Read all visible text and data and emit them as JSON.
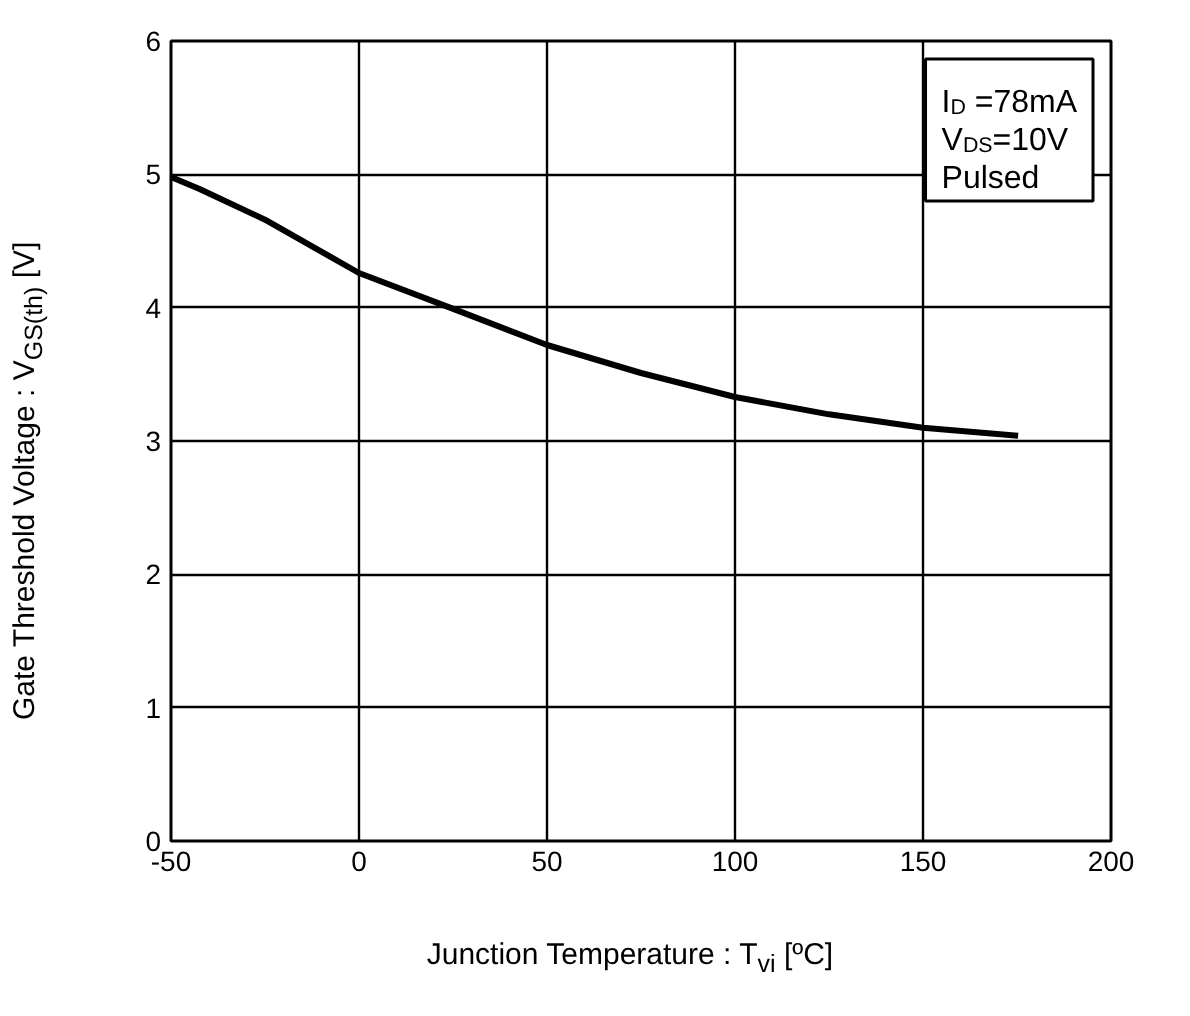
{
  "chart_data": {
    "type": "line",
    "xlabel": "Junction Temperature : T$_{vi}$ [ºC]",
    "ylabel": "Gate Threshold Voltage : V$_{GS(th)}$ [V]",
    "x": [
      -50,
      -42.4,
      -25,
      0,
      24.2,
      50,
      75,
      100,
      125,
      150,
      175.3
    ],
    "series": [
      {
        "color": "#000000",
        "values": [
          4.98,
          4.89,
          4.66,
          4.26,
          4.0,
          3.72,
          3.51,
          3.33,
          3.2,
          3.1,
          3.04
        ]
      }
    ],
    "xlim": [
      -50,
      200
    ],
    "xticks": [
      -50,
      0,
      50,
      100,
      150,
      200
    ],
    "ylim": [
      0,
      6
    ],
    "yticks": [
      0,
      1,
      2,
      3,
      4,
      5,
      6
    ],
    "grid": true,
    "line_style": "solid",
    "annotations": [
      "I$_{D}$ =78mA",
      "V$_{DS}$=10V",
      "Pulsed"
    ]
  }
}
